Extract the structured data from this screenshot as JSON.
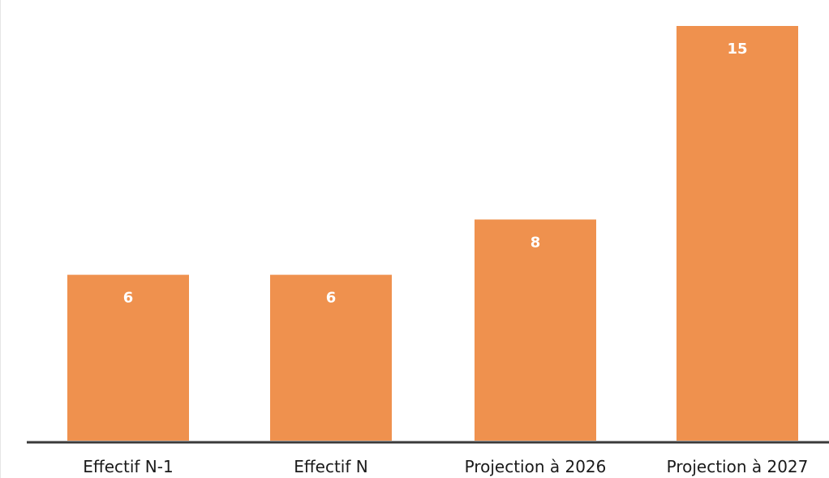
{
  "chart_data": {
    "type": "bar",
    "categories": [
      "Effectif N-1",
      "Effectif N",
      "Projection à 2026",
      "Projection à 2027"
    ],
    "values": [
      6,
      6,
      8,
      15
    ],
    "data_labels": [
      "6",
      "6",
      "8",
      "15"
    ],
    "ylim": [
      0,
      15.4
    ],
    "grid": false,
    "legend": "none",
    "colors": {
      "bar": "#EF914E",
      "label": "#ffffff",
      "axis": "#3a3a3a",
      "category_text": "#1a1a1a"
    }
  }
}
